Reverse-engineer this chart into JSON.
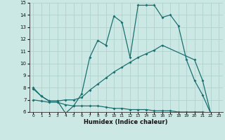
{
  "xlabel": "Humidex (Indice chaleur)",
  "xlim": [
    -0.5,
    23.5
  ],
  "ylim": [
    6,
    15
  ],
  "yticks": [
    6,
    7,
    8,
    9,
    10,
    11,
    12,
    13,
    14,
    15
  ],
  "xticks": [
    0,
    1,
    2,
    3,
    4,
    5,
    6,
    7,
    8,
    9,
    10,
    11,
    12,
    13,
    14,
    15,
    16,
    17,
    18,
    19,
    20,
    21,
    22,
    23
  ],
  "bg_color": "#cce8e4",
  "grid_color": "#aacfcc",
  "line_color": "#1a7070",
  "line1_x": [
    0,
    1,
    2,
    3,
    4,
    5,
    6,
    7,
    8,
    9,
    10,
    11,
    12,
    13,
    14,
    15,
    16,
    17,
    18,
    19,
    20,
    21,
    22
  ],
  "line1_y": [
    8.0,
    7.3,
    6.9,
    6.9,
    5.9,
    6.5,
    7.5,
    10.5,
    11.9,
    11.5,
    13.9,
    13.4,
    10.5,
    14.8,
    14.8,
    14.8,
    13.8,
    14.0,
    13.1,
    10.3,
    8.6,
    7.4,
    5.9
  ],
  "line2_x": [
    0,
    1,
    2,
    3,
    4,
    5,
    6,
    7,
    8,
    9,
    10,
    11,
    12,
    13,
    14,
    15,
    16,
    20,
    21,
    22
  ],
  "line2_y": [
    7.9,
    7.3,
    6.9,
    6.9,
    7.0,
    7.0,
    7.2,
    7.8,
    8.3,
    8.8,
    9.3,
    9.7,
    10.1,
    10.5,
    10.8,
    11.1,
    11.5,
    10.3,
    8.6,
    5.9
  ],
  "line3_x": [
    0,
    1,
    2,
    3,
    4,
    5,
    6,
    7,
    8,
    9,
    10,
    11,
    12,
    13,
    14,
    15,
    16,
    17,
    18,
    19,
    20,
    21,
    22
  ],
  "line3_y": [
    7.0,
    6.9,
    6.8,
    6.8,
    6.6,
    6.5,
    6.5,
    6.5,
    6.5,
    6.4,
    6.3,
    6.3,
    6.2,
    6.2,
    6.2,
    6.1,
    6.1,
    6.1,
    6.0,
    6.0,
    6.0,
    6.0,
    5.9
  ]
}
